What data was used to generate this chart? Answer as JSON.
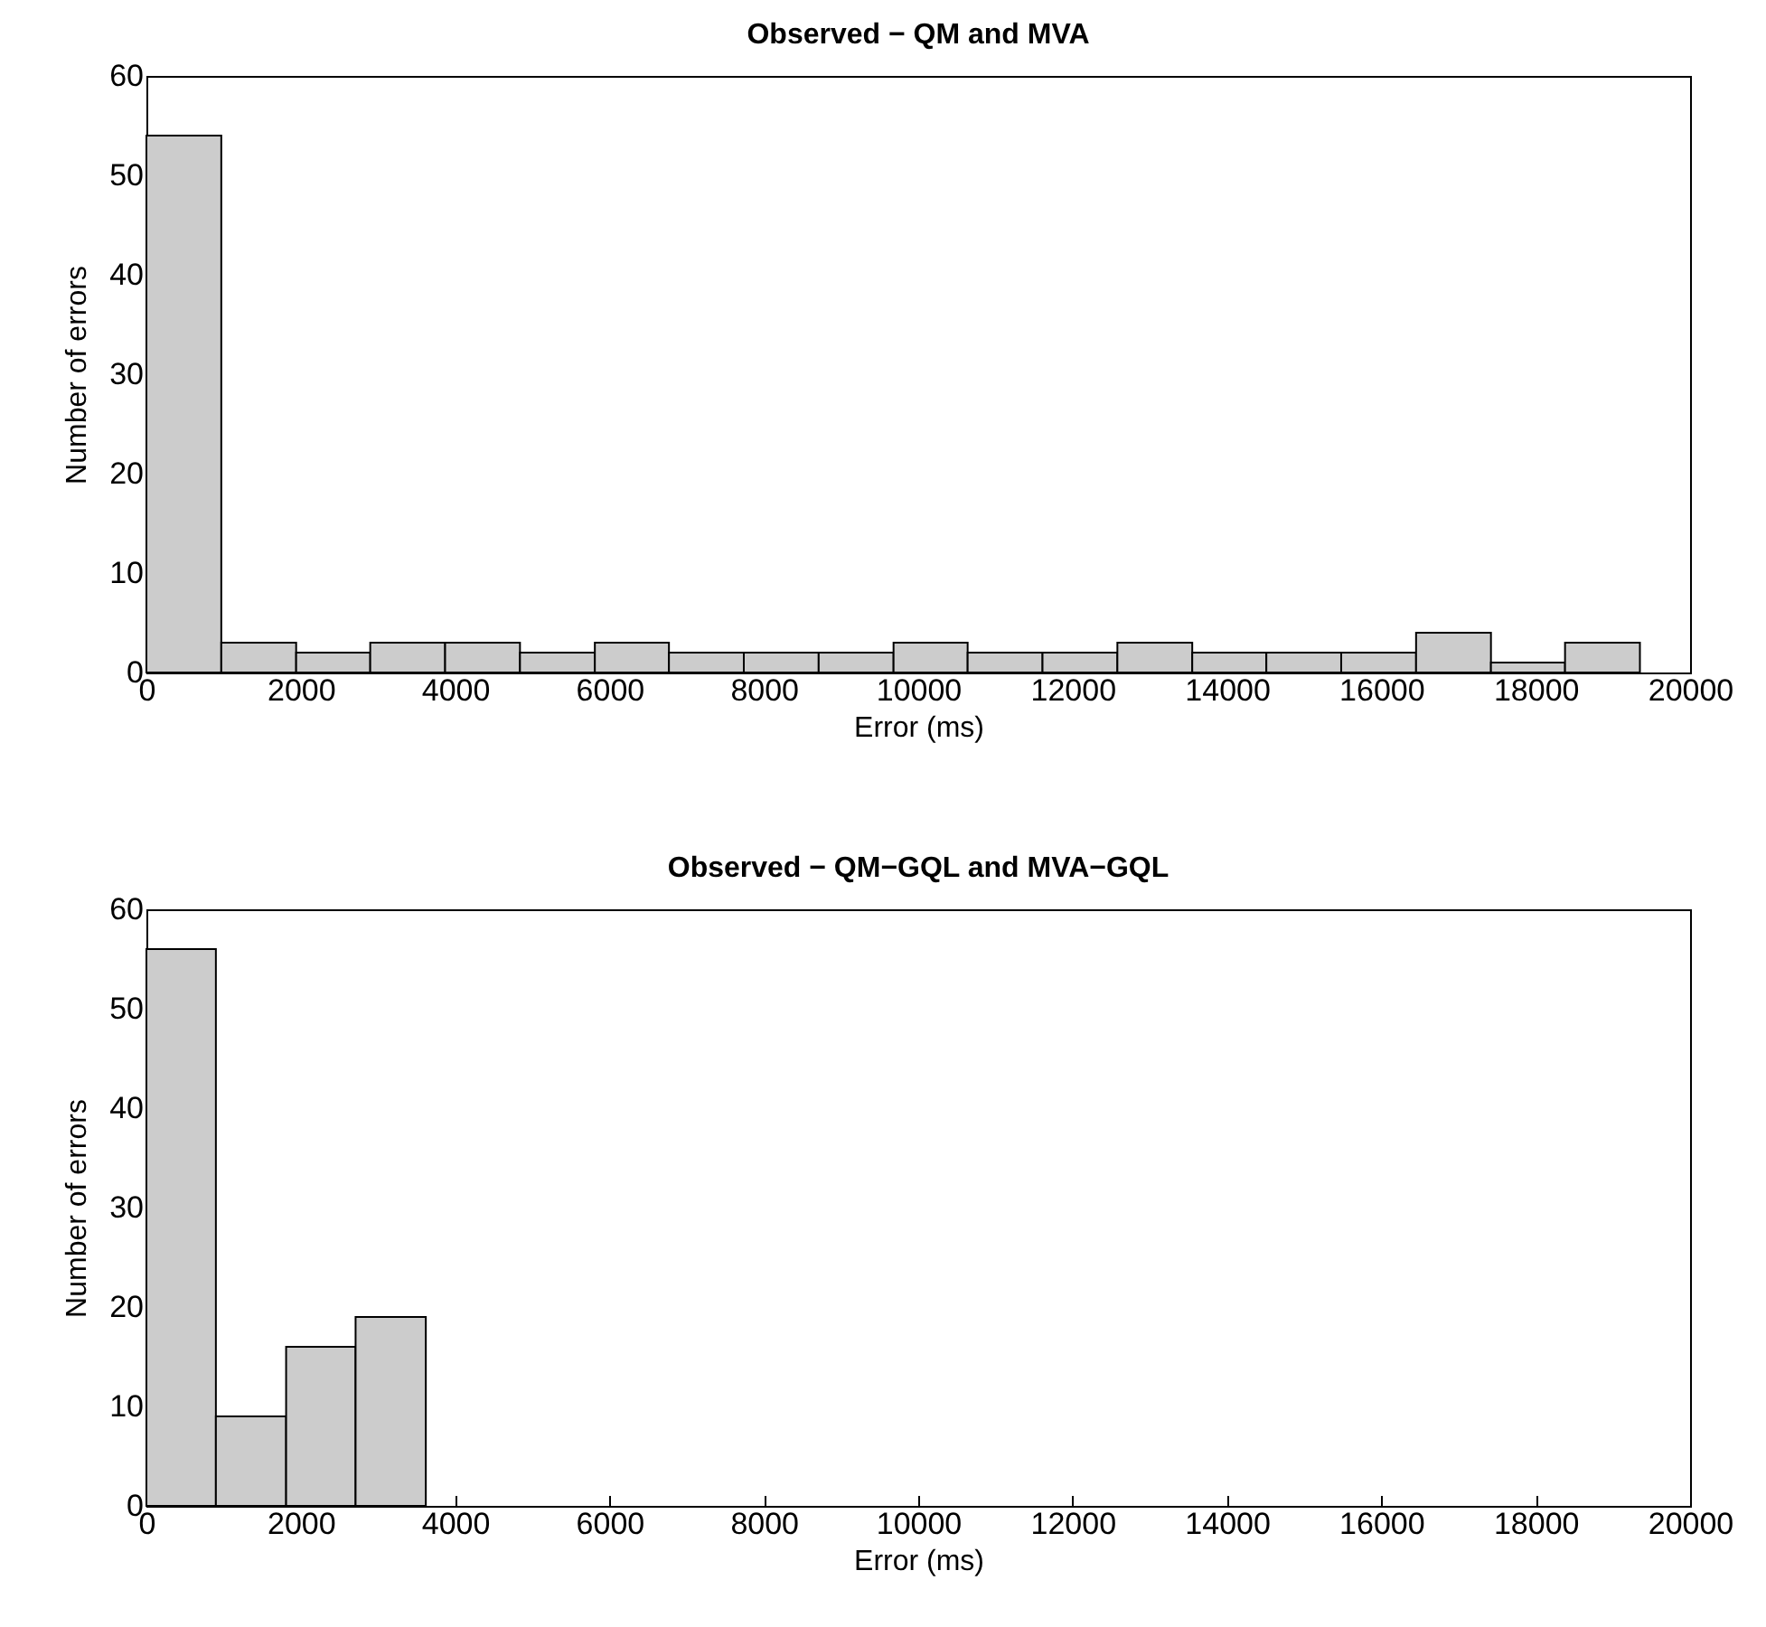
{
  "chart_data": [
    {
      "type": "histogram",
      "title": "Observed − QM and MVA",
      "xlabel": "Error (ms)",
      "ylabel": "Number of errors",
      "bins": [
        0,
        970,
        1940,
        2900,
        3870,
        4840,
        5810,
        6770,
        7740,
        8710,
        9680,
        10640,
        11610,
        12580,
        13550,
        14510,
        15480,
        16450,
        17420,
        18380,
        19350
      ],
      "values": [
        54,
        3,
        2,
        3,
        3,
        2,
        3,
        2,
        2,
        2,
        3,
        2,
        2,
        3,
        2,
        2,
        2,
        4,
        1,
        3
      ],
      "color": "#cccccc",
      "xlim": [
        0,
        20000
      ],
      "xticks": [
        0,
        2000,
        4000,
        6000,
        8000,
        10000,
        12000,
        14000,
        16000,
        18000,
        20000
      ],
      "ylim": [
        0,
        60
      ],
      "yticks": [
        0,
        10,
        20,
        30,
        40,
        50,
        60
      ],
      "grid": false
    },
    {
      "type": "histogram",
      "title": "Observed − QM−GQL and MVA−GQL",
      "xlabel": "Error (ms)",
      "ylabel": "Number of errors",
      "bins": [
        0,
        900,
        1810,
        2710,
        3620
      ],
      "values": [
        56,
        9,
        16,
        19
      ],
      "color": "#cccccc",
      "xlim": [
        0,
        20000
      ],
      "xticks": [
        0,
        2000,
        4000,
        6000,
        8000,
        10000,
        12000,
        14000,
        16000,
        18000,
        20000
      ],
      "ylim": [
        0,
        60
      ],
      "yticks": [
        0,
        10,
        20,
        30,
        40,
        50,
        60
      ],
      "grid": false
    }
  ]
}
